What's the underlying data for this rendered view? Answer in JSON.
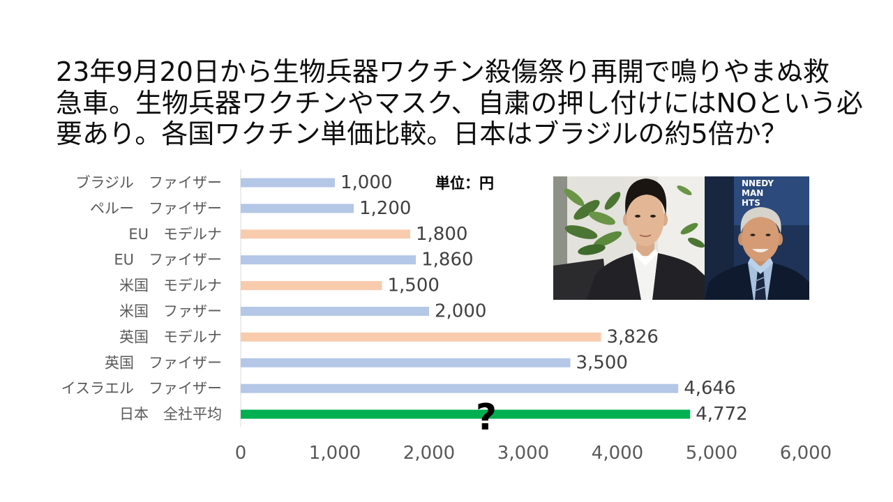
{
  "chart_data": {
    "type": "bar",
    "orientation": "horizontal",
    "title_lines": [
      "23年9月20日から生物兵器ワクチン殺傷祭り再開で鳴りやまぬ救",
      "急車。生物兵器ワクチンやマスク、自粛の押し付けにはNOという必",
      "要あり。各国ワクチン単価比較。日本はブラジルの約5倍か？"
    ],
    "unit_label": "単位：円",
    "categories": [
      "ブラジル　ファイザー",
      "ペルー　ファイザー",
      "EU　モデルナ",
      "EU　ファイザー",
      "米国　モデルナ",
      "米国　ファザー",
      "英国　モデルナ",
      "英国　ファイザー",
      "イスラエル　ファイザー",
      "日本　全社平均"
    ],
    "values": [
      1000,
      1200,
      1800,
      1860,
      1500,
      2000,
      3826,
      3500,
      4646,
      4772
    ],
    "value_labels": [
      "1,000",
      "1,200",
      "1,800",
      "1,860",
      "1,500",
      "2,000",
      "3,826",
      "3,500",
      "4,646",
      "4,772"
    ],
    "bar_colors": [
      "#B4C7E7",
      "#B4C7E7",
      "#F8CBAD",
      "#B4C7E7",
      "#F8CBAD",
      "#B4C7E7",
      "#F8CBAD",
      "#B4C7E7",
      "#B4C7E7",
      "#00B050"
    ],
    "xlim": [
      0,
      6000
    ],
    "xticks": [
      0,
      1000,
      2000,
      3000,
      4000,
      5000,
      6000
    ],
    "xtick_labels": [
      "0",
      "1,000",
      "2,000",
      "3,000",
      "4,000",
      "5,000",
      "6,000"
    ],
    "grid": false,
    "legend": "none",
    "annotation": "?",
    "colors": {
      "title_text": "#0D0D0D",
      "label_text": "#595959",
      "value_text": "#404040",
      "axis_line": "#D9D9D9",
      "unit_text": "#000000"
    }
  },
  "photos": {
    "right_backdrop_lettering": [
      "NNEDY",
      "MAN",
      "HTS"
    ]
  }
}
